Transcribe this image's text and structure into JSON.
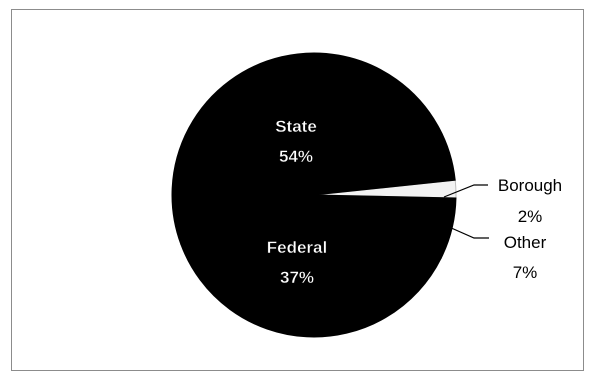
{
  "chart_data": {
    "type": "pie",
    "title": "",
    "slices": [
      {
        "name": "State",
        "value": 54,
        "label": "State",
        "pct_label": "54%",
        "color": "#000000"
      },
      {
        "name": "Federal",
        "value": 37,
        "label": "Federal",
        "pct_label": "37%",
        "color": "#000000"
      },
      {
        "name": "Other",
        "value": 7,
        "label": "Other",
        "pct_label": "7%",
        "color": "#000000"
      },
      {
        "name": "Borough",
        "value": 2,
        "label": "Borough",
        "pct_label": "2%",
        "color": "#f2f2f2"
      }
    ],
    "legend": "none",
    "border_color": "#000000",
    "label_color_inside": "#ffffff",
    "label_color_outside": "#000000"
  }
}
